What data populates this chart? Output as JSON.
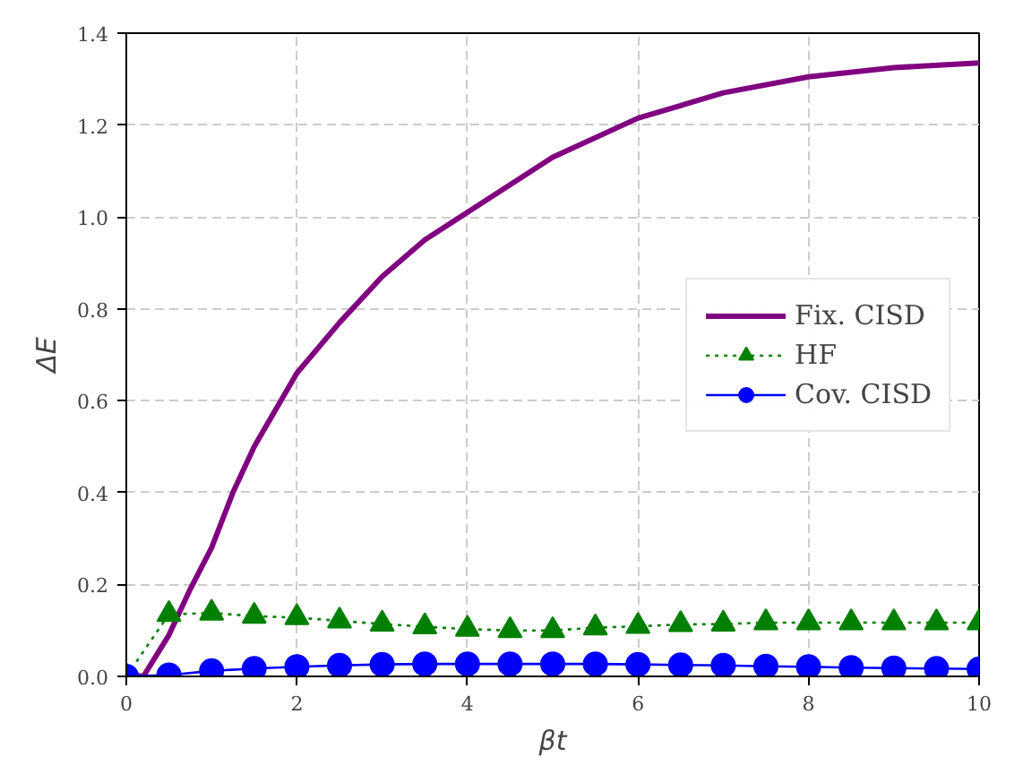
{
  "chart_data": {
    "type": "line",
    "xlabel": "βt",
    "ylabel": "ΔE",
    "xlim": [
      0,
      10
    ],
    "ylim": [
      0,
      1.4
    ],
    "xticks": [
      0,
      2,
      4,
      6,
      8,
      10
    ],
    "yticks": [
      {
        "value": 0,
        "label": "0.0"
      },
      0.2,
      0.4,
      0.6,
      0.8,
      {
        "value": 1,
        "label": "1.0"
      },
      1.2,
      1.4
    ],
    "grid": true,
    "legend": "right",
    "series": [
      {
        "name": "Fix. CISD",
        "color": "#800080",
        "marker": "none",
        "line_style": "solid",
        "x": [
          0,
          0.2,
          0.5,
          0.75,
          1,
          1.25,
          1.5,
          2,
          2.5,
          3,
          3.5,
          4,
          5,
          6,
          7,
          8,
          9,
          10
        ],
        "values": [
          0.005,
          0.0,
          0.09,
          0.19,
          0.28,
          0.4,
          0.5,
          0.66,
          0.77,
          0.87,
          0.95,
          1.01,
          1.13,
          1.215,
          1.27,
          1.305,
          1.325,
          1.335
        ]
      },
      {
        "name": "HF",
        "color": "#008000",
        "marker": "triangle",
        "line_style": "dotted",
        "x": [
          0,
          0.5,
          1,
          1.5,
          2,
          2.5,
          3,
          3.5,
          4,
          4.5,
          5,
          5.5,
          6,
          6.5,
          7,
          7.5,
          8,
          8.5,
          9,
          9.5,
          10
        ],
        "values": [
          0.0,
          0.135,
          0.138,
          0.131,
          0.128,
          0.121,
          0.114,
          0.108,
          0.103,
          0.1,
          0.1,
          0.106,
          0.109,
          0.113,
          0.114,
          0.117,
          0.117,
          0.117,
          0.117,
          0.117,
          0.117
        ]
      },
      {
        "name": "Cov. CISD",
        "color": "#0000ff",
        "marker": "circle",
        "line_style": "solid",
        "x": [
          0,
          0.5,
          1,
          1.5,
          2,
          2.5,
          3,
          3.5,
          4,
          4.5,
          5,
          5.5,
          6,
          6.5,
          7,
          7.5,
          8,
          8.5,
          9,
          9.5,
          10
        ],
        "values": [
          0.0,
          0.003,
          0.012,
          0.017,
          0.021,
          0.024,
          0.026,
          0.027,
          0.027,
          0.027,
          0.027,
          0.027,
          0.026,
          0.025,
          0.024,
          0.022,
          0.021,
          0.019,
          0.018,
          0.017,
          0.016
        ]
      }
    ]
  }
}
